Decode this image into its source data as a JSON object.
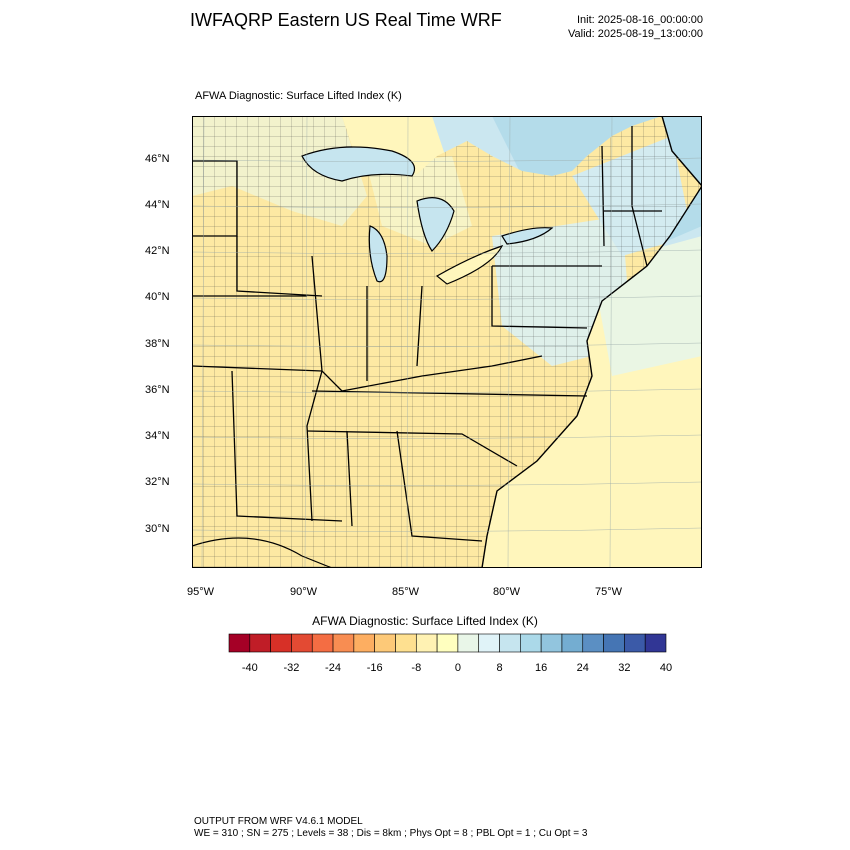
{
  "header": {
    "title": "IWFAQRP Eastern US Real Time WRF",
    "init": "Init: 2025-08-16_00:00:00",
    "valid": "Valid: 2025-08-19_13:00:00"
  },
  "panel": {
    "field_label": "AFWA Diagnostic: Surface Lifted Index   (K)"
  },
  "map": {
    "lat_labels": [
      "46°N",
      "44°N",
      "42°N",
      "40°N",
      "38°N",
      "36°N",
      "34°N",
      "32°N",
      "30°N"
    ],
    "lon_labels": [
      "95°W",
      "90°W",
      "85°W",
      "80°W",
      "75°W"
    ]
  },
  "colorbar": {
    "title": "AFWA Diagnostic: Surface Lifted Index  (K)",
    "labels": [
      "-40",
      "-32",
      "-24",
      "-16",
      "-8",
      "0",
      "8",
      "16",
      "24",
      "32",
      "40"
    ],
    "colors": [
      "#a50026",
      "#c01d27",
      "#d73027",
      "#e34a33",
      "#f46d43",
      "#f88d52",
      "#fdae61",
      "#fdc978",
      "#fee090",
      "#fff2b3",
      "#ffffbf",
      "#e9f6e8",
      "#e0f3f8",
      "#c6e5ef",
      "#abd9e9",
      "#92c5de",
      "#74add1",
      "#5b8fc3",
      "#4575b4",
      "#3b5aa8",
      "#313695"
    ]
  },
  "footer": {
    "line1": "OUTPUT FROM WRF V4.6.1 MODEL",
    "line2": "WE = 310 ; SN = 275 ; Levels = 38 ; Dis = 8km ; Phys Opt = 8 ; PBL Opt = 1 ; Cu Opt = 3"
  }
}
